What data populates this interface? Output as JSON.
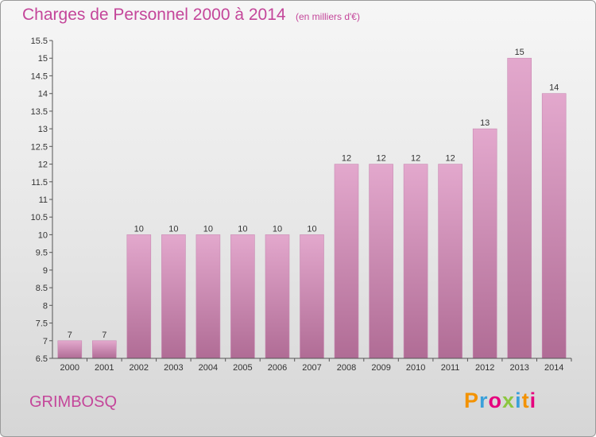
{
  "header": {
    "title": "Charges de Personnel 2000 à 2014",
    "subtitle": "(en milliers d'€)"
  },
  "footer": {
    "commune": "GRIMBOSQ",
    "logo_text": "Proxiti"
  },
  "colors": {
    "title": "#c4469a",
    "bar_top": "#e3a8cd",
    "bar_bottom": "#b06c95",
    "logo": [
      "#f39200",
      "#3aa0da",
      "#e6007e",
      "#8cc63f",
      "#3aa0da",
      "#f39200",
      "#e6007e"
    ]
  },
  "chart_data": {
    "type": "bar",
    "categories": [
      "2000",
      "2001",
      "2002",
      "2003",
      "2004",
      "2005",
      "2006",
      "2007",
      "2008",
      "2009",
      "2010",
      "2011",
      "2012",
      "2013",
      "2014"
    ],
    "values": [
      7,
      7,
      10,
      10,
      10,
      10,
      10,
      10,
      12,
      12,
      12,
      12,
      13,
      15,
      14
    ],
    "value_labels": [
      "7",
      "7",
      "10",
      "10",
      "10",
      "10",
      "10",
      "10",
      "12",
      "12",
      "12",
      "12",
      "13",
      "15",
      "14"
    ],
    "ylim": [
      6.5,
      15.5
    ],
    "yticks": [
      6.5,
      7,
      7.5,
      8,
      8.5,
      9,
      9.5,
      10,
      10.5,
      11,
      11.5,
      12,
      12.5,
      13,
      13.5,
      14,
      14.5,
      15,
      15.5
    ],
    "ytick_labels": [
      "6.5",
      "7",
      "7.5",
      "8",
      "8.5",
      "9",
      "9.5",
      "10",
      "10.5",
      "11",
      "11.5",
      "12",
      "12.5",
      "13",
      "13.5",
      "14",
      "14.5",
      "15",
      "15.5"
    ],
    "grid": false,
    "legend": "none"
  }
}
